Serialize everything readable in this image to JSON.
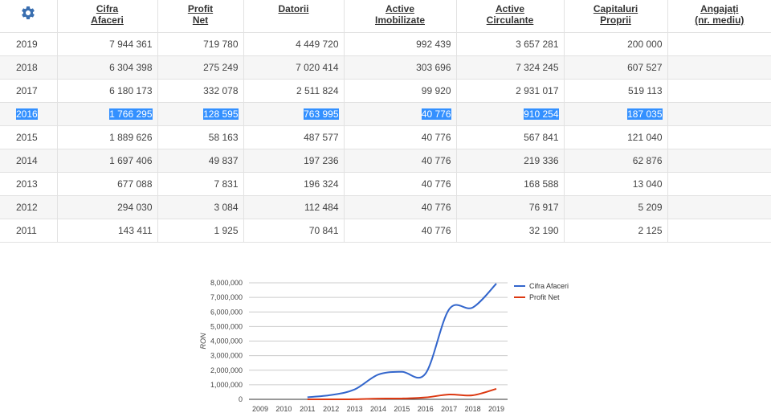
{
  "header": {
    "settings_icon": "gear-icon",
    "columns": [
      {
        "line1": "Cifra",
        "line2": "Afaceri"
      },
      {
        "line1": "Profit",
        "line2": "Net"
      },
      {
        "line1": "Datorii",
        "line2": ""
      },
      {
        "line1": "Active",
        "line2": "Imobilizate"
      },
      {
        "line1": "Active",
        "line2": "Circulante"
      },
      {
        "line1": "Capitaluri",
        "line2": "Proprii"
      },
      {
        "line1": "Angajați",
        "line2": "(nr. mediu)"
      }
    ]
  },
  "rows": [
    {
      "year": "2019",
      "cifra": "7 944 361",
      "profit": "719 780",
      "datorii": "4 449 720",
      "imob": "992 439",
      "circ": "3 657 281",
      "cap": "200 000",
      "ang": ""
    },
    {
      "year": "2018",
      "cifra": "6 304 398",
      "profit": "275 249",
      "datorii": "7 020 414",
      "imob": "303 696",
      "circ": "7 324 245",
      "cap": "607 527",
      "ang": ""
    },
    {
      "year": "2017",
      "cifra": "6 180 173",
      "profit": "332 078",
      "datorii": "2 511 824",
      "imob": "99 920",
      "circ": "2 931 017",
      "cap": "519 113",
      "ang": ""
    },
    {
      "year": "2016",
      "cifra": "1 766 295",
      "profit": "128 595",
      "datorii": "763 995",
      "imob": "40 776",
      "circ": "910 254",
      "cap": "187 035",
      "ang": "",
      "selected": true
    },
    {
      "year": "2015",
      "cifra": "1 889 626",
      "profit": "58 163",
      "datorii": "487 577",
      "imob": "40 776",
      "circ": "567 841",
      "cap": "121 040",
      "ang": ""
    },
    {
      "year": "2014",
      "cifra": "1 697 406",
      "profit": "49 837",
      "datorii": "197 236",
      "imob": "40 776",
      "circ": "219 336",
      "cap": "62 876",
      "ang": ""
    },
    {
      "year": "2013",
      "cifra": "677 088",
      "profit": "7 831",
      "datorii": "196 324",
      "imob": "40 776",
      "circ": "168 588",
      "cap": "13 040",
      "ang": ""
    },
    {
      "year": "2012",
      "cifra": "294 030",
      "profit": "3 084",
      "datorii": "112 484",
      "imob": "40 776",
      "circ": "76 917",
      "cap": "5 209",
      "ang": ""
    },
    {
      "year": "2011",
      "cifra": "143 411",
      "profit": "1 925",
      "datorii": "70 841",
      "imob": "40 776",
      "circ": "32 190",
      "cap": "2 125",
      "ang": ""
    }
  ],
  "colors": {
    "accent": "#3366cc",
    "selection": "#3390ff",
    "series1": "#3366cc",
    "series2": "#dc3912"
  },
  "chart_data": {
    "type": "line",
    "title": "",
    "xlabel": "",
    "ylabel": "RON",
    "x": [
      "2009",
      "2010",
      "2011",
      "2012",
      "2013",
      "2014",
      "2015",
      "2016",
      "2017",
      "2018",
      "2019"
    ],
    "ylim": [
      0,
      8000000
    ],
    "yticks": [
      0,
      1000000,
      2000000,
      3000000,
      4000000,
      5000000,
      6000000,
      7000000,
      8000000
    ],
    "ytick_labels": [
      "0",
      "1,000,000",
      "2,000,000",
      "3,000,000",
      "4,000,000",
      "5,000,000",
      "6,000,000",
      "7,000,000",
      "8,000,000"
    ],
    "legend_position": "right",
    "series": [
      {
        "name": "Cifra Afaceri",
        "color": "#3366cc",
        "values": [
          null,
          null,
          143411,
          294030,
          677088,
          1697406,
          1889626,
          1766295,
          6180173,
          6304398,
          7944361
        ]
      },
      {
        "name": "Profit Net",
        "color": "#dc3912",
        "values": [
          null,
          null,
          1925,
          3084,
          7831,
          49837,
          58163,
          128595,
          332078,
          275249,
          719780
        ]
      }
    ]
  }
}
